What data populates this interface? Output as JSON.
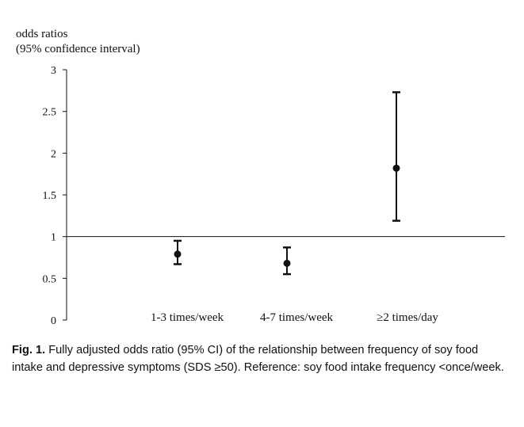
{
  "chart_data": {
    "type": "scatter",
    "ylabel_line1": "odds ratios",
    "ylabel_line2": "(95% confidence interval)",
    "ylim": [
      0,
      3
    ],
    "yticks": [
      0,
      0.5,
      1,
      1.5,
      2,
      2.5,
      3
    ],
    "ytick_labels": [
      "0",
      "0.5",
      "1",
      "1.5",
      "2",
      "2.5",
      "3"
    ],
    "reference_line": 1,
    "categories": [
      "1-3 times/week",
      "4-7 times/week",
      "≥2 times/day"
    ],
    "odds_ratio": [
      0.79,
      0.68,
      1.82
    ],
    "ci_lower": [
      0.67,
      0.55,
      1.19
    ],
    "ci_upper": [
      0.95,
      0.87,
      2.73
    ]
  },
  "caption": {
    "label": "Fig. 1.",
    "text": "Fully adjusted odds ratio (95% CI) of the relationship between frequency of soy food intake and depressive symptoms (SDS ≥50). Reference: soy food intake frequency <once/week."
  }
}
